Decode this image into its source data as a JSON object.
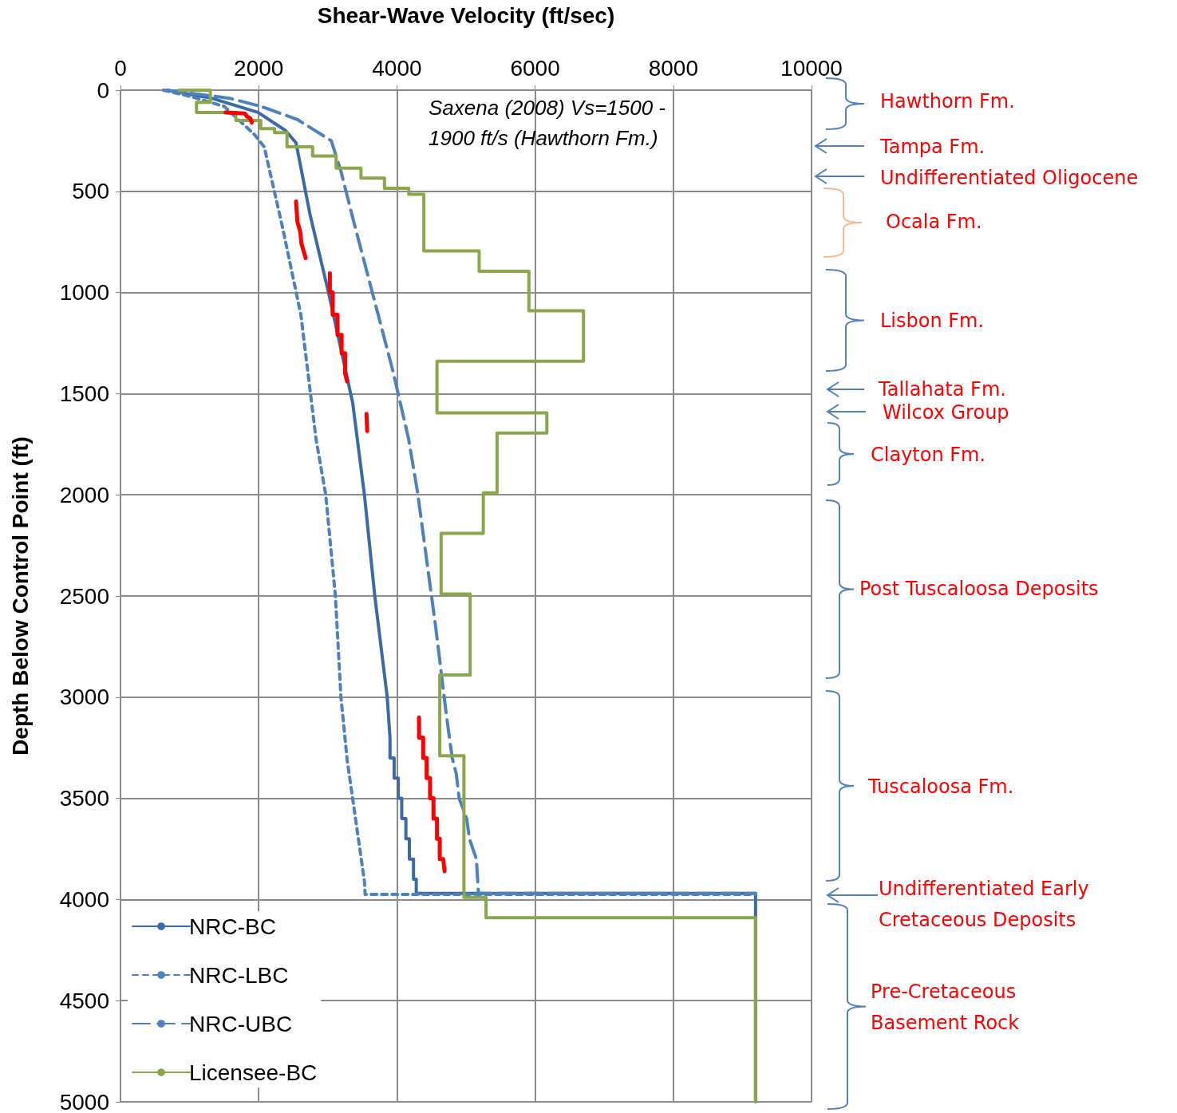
{
  "chart_data": {
    "type": "line",
    "xlabel": "Shear-Wave Velocity (ft/sec)",
    "ylabel": "Depth Below Control Point (ft)",
    "xlim": [
      0,
      10000
    ],
    "xticks": [
      0,
      2000,
      4000,
      6000,
      8000,
      10000
    ],
    "ylim": [
      5000,
      0
    ],
    "yticks": [
      0,
      500,
      1000,
      1500,
      2000,
      2500,
      3000,
      3500,
      4000,
      4500,
      5000
    ],
    "grid": true,
    "legend": "bottom left",
    "marker": "none",
    "annotations": [
      "Saxena (2008) Vs=1500 - 1900 ft/s (Hawthorn Fm.)",
      "Hawthorn Fm.",
      "Tampa  Fm.",
      "Undifferentiated Oligocene",
      "Ocala Fm.",
      "Lisbon Fm.",
      "Tallahata Fm.",
      "Wilcox Group",
      "Clayton Fm.",
      "Post Tuscaloosa Deposits",
      "Tuscaloosa Fm.",
      "Undifferentiated Early Cretaceous Deposits",
      "Pre-Cretaceous Basement Rock"
    ],
    "series": [
      {
        "name": "NRC-BC",
        "color": "#3c6aa6",
        "line_style": "solid",
        "x": [
          680,
          1320,
          1990,
          2390,
          2540,
          2740,
          3010,
          3360,
          3530,
          3680,
          3860,
          3900,
          3900,
          3960,
          3960,
          4020,
          4020,
          4070,
          4070,
          4130,
          4130,
          4180,
          4180,
          4240,
          4240,
          4280,
          4280,
          9190,
          9190
        ],
        "values": [
          0,
          40,
          110,
          200,
          260,
          610,
          1000,
          1545,
          2000,
          2500,
          3000,
          3200,
          3300,
          3300,
          3400,
          3400,
          3500,
          3500,
          3600,
          3600,
          3700,
          3700,
          3800,
          3800,
          3900,
          3900,
          3970,
          3970,
          5000
        ]
      },
      {
        "name": "NRC-LBC",
        "color": "#4f81bd",
        "line_style": "dotted",
        "x": [
          620,
          1000,
          1500,
          1940,
          2080,
          2340,
          2610,
          2830,
          2970,
          3110,
          3190,
          3280,
          3530,
          3540,
          9190
        ],
        "values": [
          0,
          30,
          80,
          220,
          280,
          670,
          1110,
          1725,
          2000,
          2500,
          3000,
          3310,
          3910,
          3975,
          3975
        ]
      },
      {
        "name": "NRC-UBC",
        "color": "#4f81bd",
        "line_style": "dashed",
        "x": [
          660,
          1580,
          2030,
          2560,
          3050,
          3190,
          3360,
          3940,
          4170,
          4300,
          4560,
          4720,
          4760,
          4800,
          4860,
          4900,
          5010,
          5050,
          5150,
          5180,
          9190
        ],
        "values": [
          0,
          40,
          80,
          145,
          250,
          400,
          630,
          1385,
          1725,
          1990,
          2650,
          3100,
          3200,
          3300,
          3380,
          3500,
          3600,
          3700,
          3800,
          3970,
          3970
        ]
      },
      {
        "name": "Licensee-BC",
        "color": "#8aa84b",
        "line_style": "solid",
        "x": [
          850,
          1300,
          1300,
          1100,
          1100,
          1670,
          1670,
          2030,
          2030,
          2230,
          2230,
          2410,
          2410,
          2780,
          2780,
          3120,
          3120,
          3480,
          3480,
          3820,
          3820,
          4170,
          4170,
          4390,
          4390,
          5190,
          5190,
          5910,
          5910,
          6700,
          6700,
          4580,
          4580,
          6170,
          6170,
          5450,
          5450,
          5250,
          5250,
          4640,
          4640,
          5060,
          5060,
          4620,
          4620,
          4970,
          4970,
          5290,
          5290,
          9190,
          9190
        ],
        "values": [
          0,
          0,
          60,
          60,
          110,
          110,
          150,
          150,
          190,
          190,
          210,
          210,
          280,
          280,
          325,
          325,
          385,
          385,
          435,
          435,
          485,
          485,
          515,
          515,
          795,
          795,
          895,
          895,
          1090,
          1090,
          1340,
          1340,
          1595,
          1595,
          1695,
          1695,
          1990,
          1990,
          2190,
          2190,
          2490,
          2490,
          2890,
          2890,
          3290,
          3290,
          3990,
          3990,
          4090,
          4090,
          5000
        ]
      },
      {
        "color": "#ff0000",
        "line_style": "solid",
        "x": [
          1520,
          1800,
          1830,
          1880,
          1900,
          null,
          2540,
          2560,
          2600,
          2620,
          2680,
          null,
          3030,
          3030,
          3070,
          3070,
          3140,
          3140,
          3200,
          3200,
          3250,
          3250,
          3280,
          null,
          3560,
          3570,
          null,
          4320,
          4320,
          4380,
          4380,
          4430,
          4430,
          4480,
          4480,
          4530,
          4530,
          4580,
          4580,
          4620,
          4620,
          4670,
          4690
        ],
        "values": [
          110,
          115,
          130,
          140,
          160,
          null,
          550,
          650,
          700,
          760,
          830,
          null,
          905,
          1000,
          1000,
          1110,
          1110,
          1210,
          1210,
          1300,
          1300,
          1400,
          1440,
          null,
          1600,
          1685,
          null,
          3100,
          3200,
          3200,
          3300,
          3300,
          3400,
          3400,
          3500,
          3500,
          3600,
          3600,
          3700,
          3700,
          3800,
          3800,
          3860
        ]
      }
    ]
  }
}
